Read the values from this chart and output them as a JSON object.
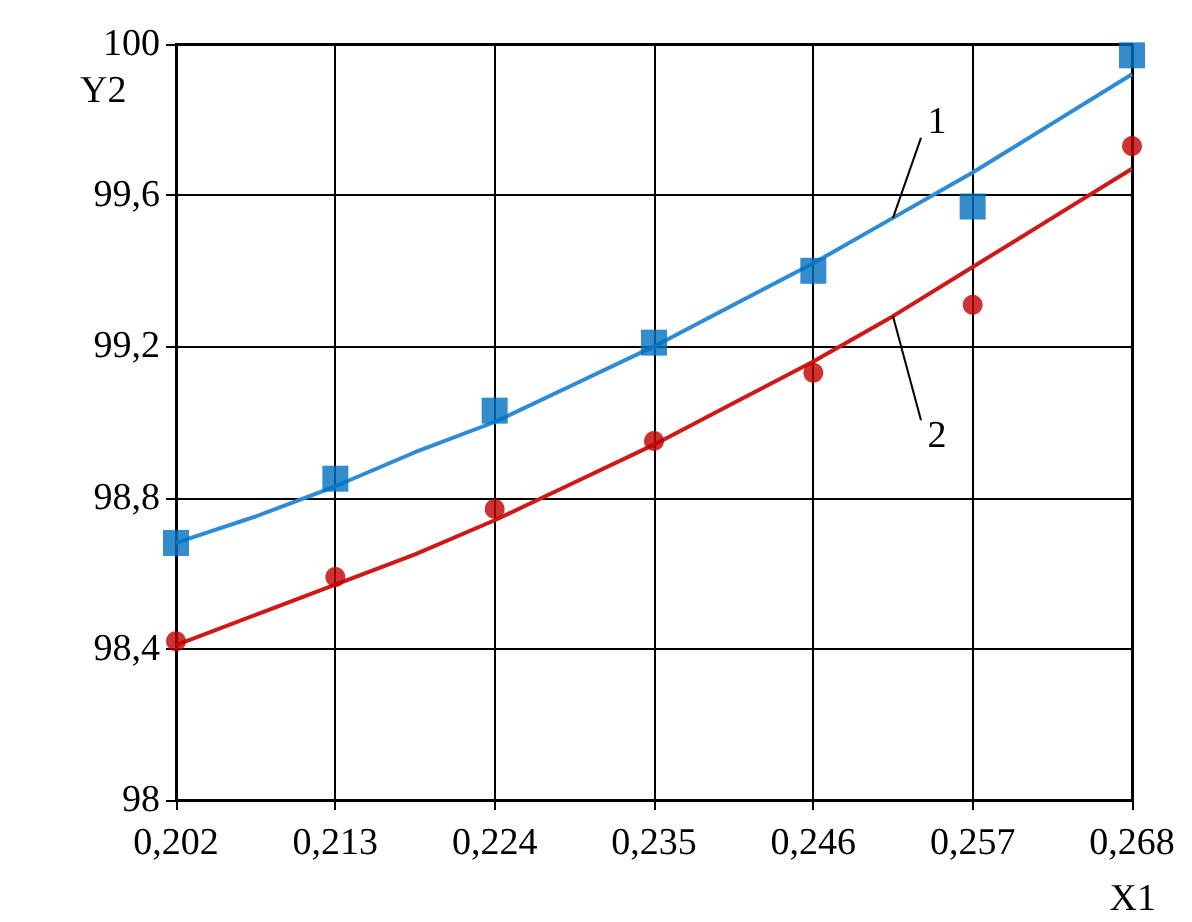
{
  "chart_data": {
    "type": "scatter",
    "xlabel": "X1",
    "ylabel": "Y2",
    "xlim": [
      0.202,
      0.268
    ],
    "xticks": [
      {
        "value": 0.202,
        "label": "0,202"
      },
      {
        "value": 0.213,
        "label": "0,213"
      },
      {
        "value": 0.224,
        "label": "0,224"
      },
      {
        "value": 0.235,
        "label": "0,235"
      },
      {
        "value": 0.246,
        "label": "0,246"
      },
      {
        "value": 0.257,
        "label": "0,257"
      },
      {
        "value": 0.268,
        "label": "0,268"
      }
    ],
    "ylim": [
      98,
      100
    ],
    "yticks": [
      98,
      {
        "value": 98.4,
        "label": "98,4"
      },
      {
        "value": 98.8,
        "label": "98,8"
      },
      {
        "value": 99.2,
        "label": "99,2"
      },
      {
        "value": 99.6,
        "label": "99,6"
      },
      100
    ],
    "grid": true,
    "legend": false,
    "series": [
      {
        "type": "scatter",
        "marker": "square",
        "color": "#0070c0",
        "x": [
          0.202,
          0.213,
          0.224,
          0.235,
          0.246,
          0.257,
          0.268
        ],
        "values": [
          98.68,
          98.85,
          99.03,
          99.21,
          99.4,
          99.57,
          99.97
        ]
      },
      {
        "type": "scatter",
        "marker": "circle",
        "color": "#c00000",
        "x": [
          0.202,
          0.213,
          0.224,
          0.235,
          0.246,
          0.257,
          0.268
        ],
        "values": [
          98.42,
          98.59,
          98.77,
          98.95,
          99.13,
          99.31,
          99.73
        ]
      },
      {
        "type": "line",
        "name": "1",
        "marker": "none",
        "color": "#2e8bd6",
        "x": [
          0.202,
          0.2075,
          0.213,
          0.2185,
          0.224,
          0.2295,
          0.235,
          0.2405,
          0.246,
          0.2515,
          0.257,
          0.2625,
          0.268
        ],
        "values": [
          98.68,
          98.75,
          98.83,
          98.92,
          99.0,
          99.1,
          99.2,
          99.31,
          99.42,
          99.54,
          99.66,
          99.79,
          99.92
        ]
      },
      {
        "type": "line",
        "name": "2",
        "marker": "none",
        "color": "#d01818",
        "x": [
          0.202,
          0.2075,
          0.213,
          0.2185,
          0.224,
          0.2295,
          0.235,
          0.2405,
          0.246,
          0.2515,
          0.257,
          0.2625,
          0.268
        ],
        "values": [
          98.41,
          98.49,
          98.57,
          98.65,
          98.74,
          98.84,
          98.94,
          99.05,
          99.16,
          99.28,
          99.41,
          99.54,
          99.67
        ]
      }
    ]
  }
}
